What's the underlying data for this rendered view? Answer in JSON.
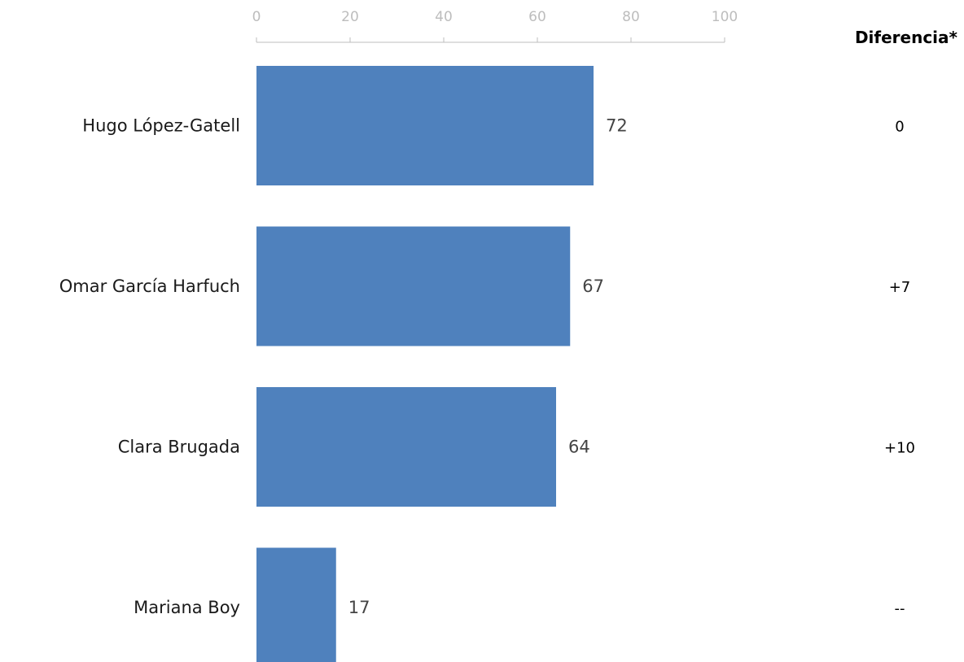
{
  "chart_data": {
    "type": "bar",
    "orientation": "horizontal",
    "categories": [
      "Hugo López-Gatell",
      "Omar García Harfuch",
      "Clara Brugada",
      "Mariana Boy"
    ],
    "values": [
      72,
      67,
      64,
      17
    ],
    "xlim": [
      0,
      100
    ],
    "x_ticks": [
      0,
      20,
      40,
      60,
      80,
      100
    ],
    "bar_color": "#4f81bd",
    "grid": false,
    "difference_header": "Diferencia*",
    "difference_values": [
      "0",
      "+7",
      "+10",
      "--"
    ]
  }
}
